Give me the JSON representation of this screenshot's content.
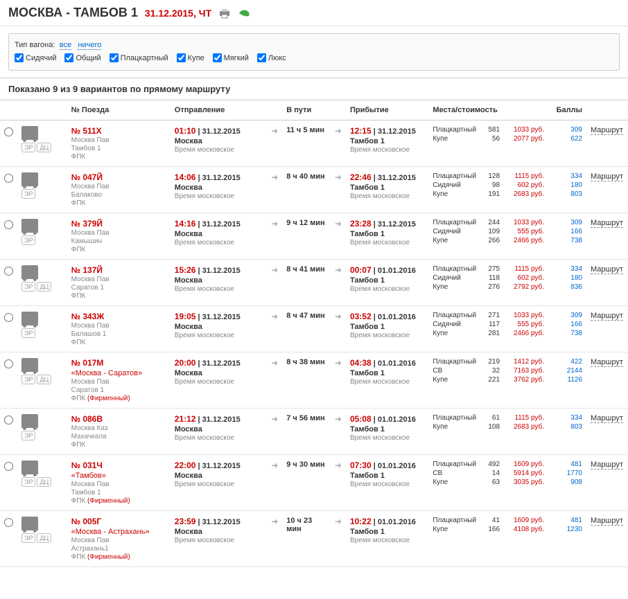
{
  "header": {
    "route": "МОСКВА - ТАМБОВ 1",
    "date": "31.12.2015, ЧТ"
  },
  "filter": {
    "label": "Тип вагона:",
    "all": "все",
    "none": "ничего",
    "types": [
      "Сидячий",
      "Общий",
      "Плацкартный",
      "Купе",
      "Мягкий",
      "Люкс"
    ]
  },
  "summary": "Показано 9 из 9 вариантов по прямому маршруту",
  "columns": {
    "train": "№ Поезда",
    "dep": "Отправление",
    "dur": "В пути",
    "arr": "Прибытие",
    "price": "Места/стоимость",
    "pts": "Баллы"
  },
  "route_label": "Маршрут",
  "tz_label": "Время московское",
  "badges": {
    "er": "ЭР",
    "dc": "ДЦ"
  },
  "trains": [
    {
      "no": "№ 511Х",
      "from": "Москва Пав",
      "to": "Тамбов 1",
      "carrier": "ФПК",
      "dep_time": "01:10",
      "dep_date": "31.12.2015",
      "dep_station": "Москва",
      "dur": "11 ч 5 мин",
      "arr_time": "12:15",
      "arr_date": "31.12.2015",
      "arr_station": "Тамбов 1",
      "badges": [
        "ЭР",
        "ДЦ"
      ],
      "prices": [
        {
          "type": "Плацкартный",
          "seats": "581",
          "price": "1033 руб.",
          "pts": "309"
        },
        {
          "type": "Купе",
          "seats": "56",
          "price": "2077 руб.",
          "pts": "622"
        }
      ]
    },
    {
      "no": "№ 047Й",
      "from": "Москва Пав",
      "to": "Балаково",
      "carrier": "ФПК",
      "dep_time": "14:06",
      "dep_date": "31.12.2015",
      "dep_station": "Москва",
      "dur": "8 ч 40 мин",
      "arr_time": "22:46",
      "arr_date": "31.12.2015",
      "arr_station": "Тамбов 1",
      "badges": [
        "ЭР"
      ],
      "prices": [
        {
          "type": "Плацкартный",
          "seats": "128",
          "price": "1115 руб.",
          "pts": "334"
        },
        {
          "type": "Сидячий",
          "seats": "98",
          "price": "602 руб.",
          "pts": "180"
        },
        {
          "type": "Купе",
          "seats": "191",
          "price": "2683 руб.",
          "pts": "803"
        }
      ]
    },
    {
      "no": "№ 379Й",
      "from": "Москва Пав",
      "to": "Камышин",
      "carrier": "ФПК",
      "dep_time": "14:16",
      "dep_date": "31.12.2015",
      "dep_station": "Москва",
      "dur": "9 ч 12 мин",
      "arr_time": "23:28",
      "arr_date": "31.12.2015",
      "arr_station": "Тамбов 1",
      "badges": [
        "ЭР"
      ],
      "prices": [
        {
          "type": "Плацкартный",
          "seats": "244",
          "price": "1033 руб.",
          "pts": "309"
        },
        {
          "type": "Сидячий",
          "seats": "109",
          "price": "555 руб.",
          "pts": "166"
        },
        {
          "type": "Купе",
          "seats": "266",
          "price": "2466 руб.",
          "pts": "738"
        }
      ]
    },
    {
      "no": "№ 137Й",
      "from": "Москва Пав",
      "to": "Саратов 1",
      "carrier": "ФПК",
      "dep_time": "15:26",
      "dep_date": "31.12.2015",
      "dep_station": "Москва",
      "dur": "8 ч 41 мин",
      "arr_time": "00:07",
      "arr_date": "01.01.2016",
      "arr_station": "Тамбов 1",
      "badges": [
        "ЭР",
        "ДЦ"
      ],
      "prices": [
        {
          "type": "Плацкартный",
          "seats": "275",
          "price": "1115 руб.",
          "pts": "334"
        },
        {
          "type": "Сидячий",
          "seats": "118",
          "price": "602 руб.",
          "pts": "180"
        },
        {
          "type": "Купе",
          "seats": "276",
          "price": "2792 руб.",
          "pts": "836"
        }
      ]
    },
    {
      "no": "№ 343Ж",
      "from": "Москва Пав",
      "to": "Балашов 1",
      "carrier": "ФПК",
      "dep_time": "19:05",
      "dep_date": "31.12.2015",
      "dep_station": "Москва",
      "dur": "8 ч 47 мин",
      "arr_time": "03:52",
      "arr_date": "01.01.2016",
      "arr_station": "Тамбов 1",
      "badges": [
        "ЭР"
      ],
      "prices": [
        {
          "type": "Плацкартный",
          "seats": "271",
          "price": "1033 руб.",
          "pts": "309"
        },
        {
          "type": "Сидячий",
          "seats": "117",
          "price": "555 руб.",
          "pts": "166"
        },
        {
          "type": "Купе",
          "seats": "281",
          "price": "2466 руб.",
          "pts": "738"
        }
      ]
    },
    {
      "no": "№ 017М",
      "name": "«Москва - Саратов»",
      "from": "Москва Пав",
      "to": "Саратов 1",
      "carrier": "ФПК",
      "firm": "(Фирменный)",
      "dep_time": "20:00",
      "dep_date": "31.12.2015",
      "dep_station": "Москва",
      "dur": "8 ч 38 мин",
      "arr_time": "04:38",
      "arr_date": "01.01.2016",
      "arr_station": "Тамбов 1",
      "badges": [
        "ЭР",
        "ДЦ"
      ],
      "prices": [
        {
          "type": "Плацкартный",
          "seats": "219",
          "price": "1412 руб.",
          "pts": "422"
        },
        {
          "type": "СВ",
          "seats": "32",
          "price": "7163 руб.",
          "pts": "2144"
        },
        {
          "type": "Купе",
          "seats": "221",
          "price": "3762 руб.",
          "pts": "1126"
        }
      ]
    },
    {
      "no": "№ 086В",
      "from": "Москва Каз",
      "to": "Махачкала",
      "carrier": "ФПК",
      "dep_time": "21:12",
      "dep_date": "31.12.2015",
      "dep_station": "Москва",
      "dur": "7 ч 56 мин",
      "arr_time": "05:08",
      "arr_date": "01.01.2016",
      "arr_station": "Тамбов 1",
      "badges": [
        "ЭР"
      ],
      "prices": [
        {
          "type": "Плацкартный",
          "seats": "61",
          "price": "1115 руб.",
          "pts": "334"
        },
        {
          "type": "Купе",
          "seats": "108",
          "price": "2683 руб.",
          "pts": "803"
        }
      ]
    },
    {
      "no": "№ 031Ч",
      "name": "«Тамбов»",
      "from": "Москва Пав",
      "to": "Тамбов 1",
      "carrier": "ФПК",
      "firm": "(Фирменный)",
      "dep_time": "22:00",
      "dep_date": "31.12.2015",
      "dep_station": "Москва",
      "dur": "9 ч 30 мин",
      "arr_time": "07:30",
      "arr_date": "01.01.2016",
      "arr_station": "Тамбов 1",
      "badges": [
        "ЭР",
        "ДЦ"
      ],
      "prices": [
        {
          "type": "Плацкартный",
          "seats": "492",
          "price": "1609 руб.",
          "pts": "481"
        },
        {
          "type": "СВ",
          "seats": "14",
          "price": "5914 руб.",
          "pts": "1770"
        },
        {
          "type": "Купе",
          "seats": "63",
          "price": "3035 руб.",
          "pts": "908"
        }
      ]
    },
    {
      "no": "№ 005Г",
      "name": "«Москва - Астрахань»",
      "from": "Москва Пав",
      "to": "Астрахань1",
      "carrier": "ФПК",
      "firm": "(Фирменный)",
      "dep_time": "23:59",
      "dep_date": "31.12.2015",
      "dep_station": "Москва",
      "dur": "10 ч 23 мин",
      "arr_time": "10:22",
      "arr_date": "01.01.2016",
      "arr_station": "Тамбов 1",
      "badges": [
        "ЭР",
        "ДЦ"
      ],
      "prices": [
        {
          "type": "Плацкартный",
          "seats": "41",
          "price": "1609 руб.",
          "pts": "481"
        },
        {
          "type": "Купе",
          "seats": "166",
          "price": "4108 руб.",
          "pts": "1230"
        }
      ]
    }
  ]
}
